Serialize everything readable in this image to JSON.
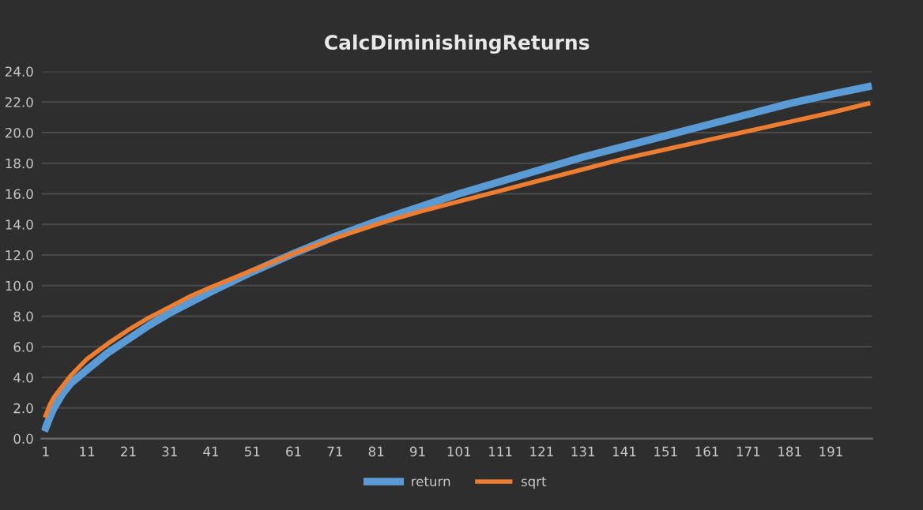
{
  "chart_data": {
    "type": "line",
    "title": "CalcDiminishingReturns",
    "x": [
      1,
      2,
      3,
      5,
      7,
      11,
      16,
      21,
      26,
      31,
      36,
      41,
      51,
      61,
      71,
      81,
      91,
      101,
      111,
      121,
      131,
      141,
      151,
      161,
      171,
      181,
      191,
      200
    ],
    "series": [
      {
        "name": "return",
        "color": "#5b9bd5",
        "values": [
          0.7,
          1.4,
          2.0,
          2.9,
          3.6,
          4.5,
          5.6,
          6.5,
          7.4,
          8.2,
          8.9,
          9.6,
          10.9,
          12.1,
          13.2,
          14.2,
          15.1,
          16.0,
          16.8,
          17.6,
          18.4,
          19.1,
          19.8,
          20.5,
          21.2,
          21.9,
          22.5,
          23.0
        ]
      },
      {
        "name": "sqrt",
        "color": "#ed7d31",
        "values": [
          1.5,
          2.2,
          2.7,
          3.4,
          4.1,
          5.2,
          6.2,
          7.1,
          7.9,
          8.6,
          9.3,
          9.9,
          11.0,
          12.1,
          13.1,
          14.0,
          14.8,
          15.5,
          16.2,
          16.9,
          17.6,
          18.3,
          18.9,
          19.5,
          20.1,
          20.7,
          21.3,
          21.9
        ]
      }
    ],
    "xlim": [
      0,
      201
    ],
    "xticks": [
      1,
      11,
      21,
      31,
      41,
      51,
      61,
      71,
      81,
      91,
      101,
      111,
      121,
      131,
      141,
      151,
      161,
      171,
      181,
      191
    ],
    "ylim": [
      0,
      24
    ],
    "yticks": [
      {
        "value": 0,
        "label": "0.0"
      },
      {
        "value": 2,
        "label": "2.0"
      },
      {
        "value": 4,
        "label": "4.0"
      },
      {
        "value": 6,
        "label": "6.0"
      },
      {
        "value": 8,
        "label": "8.0"
      },
      {
        "value": 10,
        "label": "10.0"
      },
      {
        "value": 12,
        "label": "12.0"
      },
      {
        "value": 14,
        "label": "14.0"
      },
      {
        "value": 16,
        "label": "16.0"
      },
      {
        "value": 18,
        "label": "18.0"
      },
      {
        "value": 20,
        "label": "20.0"
      },
      {
        "value": 22,
        "label": "22.0"
      },
      {
        "value": 24,
        "label": "24.0"
      }
    ],
    "grid": "y",
    "legend": "bottom",
    "marker": "none",
    "line_style": "solid"
  }
}
